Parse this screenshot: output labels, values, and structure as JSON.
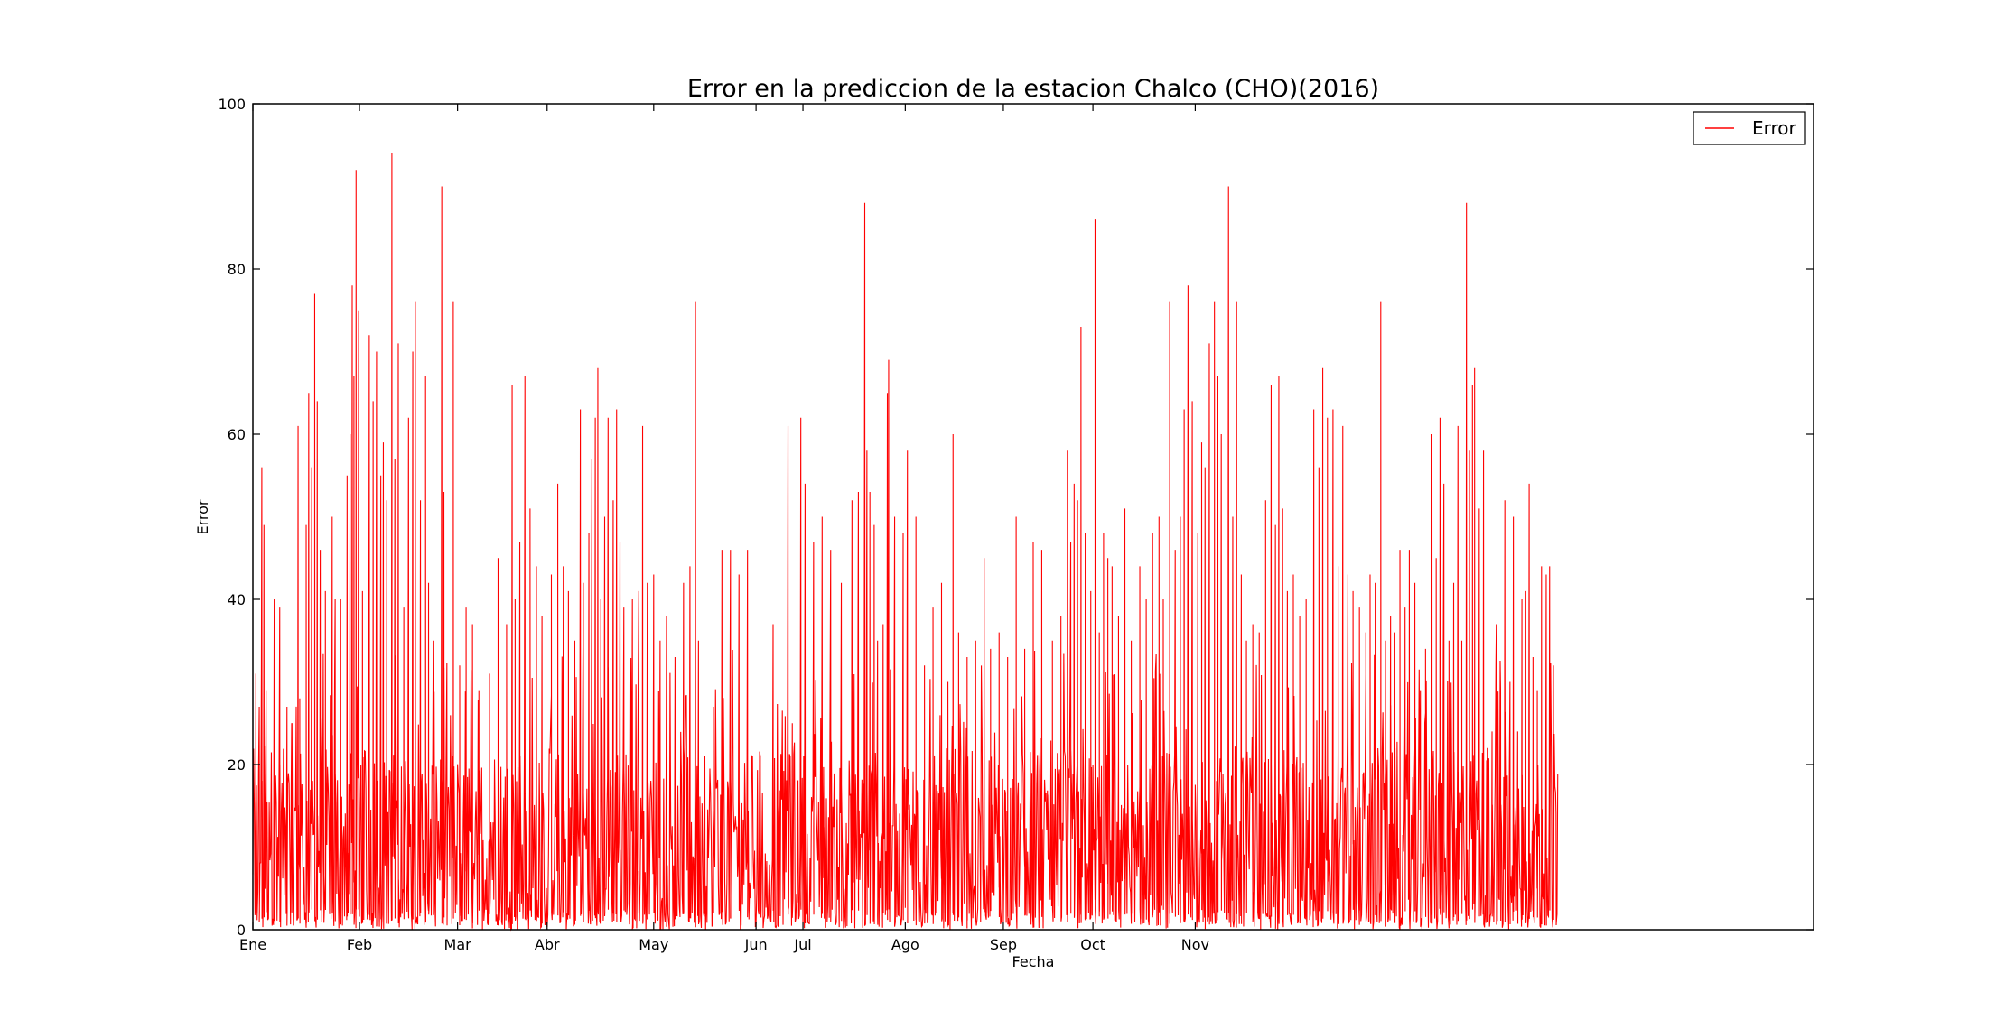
{
  "chart_data": {
    "type": "line",
    "title": "Error en la prediccion de la estacion Chalco (CHO)(2016)",
    "xlabel": "Fecha",
    "ylabel": "Error",
    "ylim": [
      0,
      100
    ],
    "yticks": [
      0,
      20,
      40,
      60,
      80,
      100
    ],
    "xlim": [
      0,
      366
    ],
    "x_tick_positions": [
      0,
      25,
      48,
      69,
      94,
      118,
      129,
      153,
      176,
      197,
      221
    ],
    "x_tick_labels": [
      "Ene",
      "Feb",
      "Mar",
      "Abr",
      "May",
      "Jun",
      "Jul",
      "Ago",
      "Sep",
      "Oct",
      "Nov"
    ],
    "x_data_end": 306,
    "grid": false,
    "legend_position": "top-right",
    "series": [
      {
        "name": "Error",
        "color": "#ff0000",
        "points_per_day": 6,
        "baseline_mean": 8,
        "peaks": [
          [
            0.7,
            31
          ],
          [
            1.5,
            27
          ],
          [
            2.1,
            56
          ],
          [
            2.6,
            49
          ],
          [
            3.1,
            29
          ],
          [
            5.0,
            40
          ],
          [
            6.3,
            39
          ],
          [
            8.0,
            27
          ],
          [
            9.1,
            25
          ],
          [
            10.6,
            61
          ],
          [
            11.0,
            28
          ],
          [
            12.5,
            49
          ],
          [
            13.1,
            65
          ],
          [
            13.8,
            56
          ],
          [
            14.5,
            77
          ],
          [
            15.1,
            64
          ],
          [
            15.8,
            46
          ],
          [
            17.0,
            41
          ],
          [
            18.6,
            50
          ],
          [
            19.3,
            40
          ],
          [
            20.6,
            40
          ],
          [
            22.1,
            55
          ],
          [
            22.8,
            60
          ],
          [
            23.3,
            78
          ],
          [
            23.7,
            67
          ],
          [
            24.2,
            92
          ],
          [
            24.8,
            75
          ],
          [
            25.7,
            41
          ],
          [
            27.3,
            72
          ],
          [
            28.2,
            64
          ],
          [
            29.0,
            70
          ],
          [
            30.0,
            55
          ],
          [
            30.6,
            59
          ],
          [
            31.4,
            52
          ],
          [
            32.6,
            94
          ],
          [
            33.3,
            57
          ],
          [
            34.1,
            71
          ],
          [
            35.4,
            39
          ],
          [
            36.5,
            62
          ],
          [
            37.5,
            70
          ],
          [
            38.1,
            76
          ],
          [
            39.3,
            52
          ],
          [
            40.5,
            67
          ],
          [
            41.2,
            42
          ],
          [
            42.3,
            35
          ],
          [
            44.3,
            90
          ],
          [
            44.8,
            53
          ],
          [
            45.5,
            30
          ],
          [
            47.0,
            76
          ],
          [
            48.5,
            32
          ],
          [
            50.0,
            39
          ],
          [
            51.5,
            37
          ],
          [
            53.0,
            29
          ],
          [
            55.5,
            31
          ],
          [
            57.5,
            45
          ],
          [
            59.5,
            37
          ],
          [
            60.8,
            66
          ],
          [
            61.5,
            40
          ],
          [
            62.6,
            47
          ],
          [
            63.8,
            67
          ],
          [
            65.0,
            51
          ],
          [
            66.5,
            44
          ],
          [
            67.8,
            38
          ],
          [
            70.0,
            43
          ],
          [
            71.5,
            54
          ],
          [
            72.8,
            44
          ],
          [
            74.0,
            41
          ],
          [
            75.5,
            35
          ],
          [
            76.8,
            63
          ],
          [
            77.5,
            42
          ],
          [
            78.8,
            48
          ],
          [
            79.5,
            57
          ],
          [
            80.3,
            62
          ],
          [
            80.9,
            68
          ],
          [
            81.6,
            40
          ],
          [
            82.5,
            50
          ],
          [
            83.3,
            62
          ],
          [
            84.5,
            52
          ],
          [
            85.3,
            63
          ],
          [
            86.1,
            47
          ],
          [
            87.0,
            39
          ],
          [
            89.0,
            40
          ],
          [
            90.5,
            41
          ],
          [
            91.4,
            61
          ],
          [
            92.5,
            42
          ],
          [
            94.0,
            43
          ],
          [
            95.5,
            35
          ],
          [
            97.0,
            38
          ],
          [
            99.0,
            33
          ],
          [
            101.0,
            42
          ],
          [
            102.5,
            44
          ],
          [
            103.8,
            76
          ],
          [
            104.5,
            35
          ],
          [
            106.0,
            21
          ],
          [
            108.0,
            27
          ],
          [
            110.0,
            46
          ],
          [
            112.0,
            46
          ],
          [
            114.0,
            43
          ],
          [
            116.0,
            46
          ],
          [
            119.0,
            21
          ],
          [
            122.0,
            37
          ],
          [
            125.5,
            61
          ],
          [
            126.5,
            25
          ],
          [
            128.5,
            62
          ],
          [
            129.5,
            54
          ],
          [
            131.5,
            47
          ],
          [
            133.5,
            50
          ],
          [
            135.5,
            46
          ],
          [
            138.0,
            42
          ],
          [
            140.5,
            52
          ],
          [
            142.0,
            53
          ],
          [
            143.5,
            88
          ],
          [
            144.0,
            58
          ],
          [
            144.7,
            53
          ],
          [
            145.7,
            49
          ],
          [
            146.5,
            35
          ],
          [
            147.8,
            37
          ],
          [
            148.8,
            65
          ],
          [
            149.1,
            69
          ],
          [
            150.5,
            50
          ],
          [
            152.5,
            48
          ],
          [
            153.5,
            58
          ],
          [
            155.5,
            50
          ],
          [
            157.5,
            32
          ],
          [
            159.5,
            39
          ],
          [
            161.5,
            42
          ],
          [
            163.0,
            30
          ],
          [
            164.2,
            60
          ],
          [
            165.5,
            36
          ],
          [
            167.5,
            33
          ],
          [
            169.5,
            35
          ],
          [
            171.5,
            45
          ],
          [
            173.0,
            34
          ],
          [
            175.0,
            36
          ],
          [
            177.0,
            33
          ],
          [
            179.0,
            50
          ],
          [
            181.0,
            34
          ],
          [
            183.0,
            47
          ],
          [
            185.0,
            46
          ],
          [
            187.5,
            35
          ],
          [
            189.5,
            38
          ],
          [
            191.0,
            58
          ],
          [
            191.8,
            47
          ],
          [
            192.6,
            54
          ],
          [
            193.4,
            52
          ],
          [
            194.2,
            73
          ],
          [
            195.2,
            48
          ],
          [
            196.5,
            41
          ],
          [
            197.5,
            86
          ],
          [
            198.5,
            36
          ],
          [
            199.5,
            48
          ],
          [
            200.5,
            45
          ],
          [
            201.5,
            44
          ],
          [
            203.0,
            38
          ],
          [
            204.5,
            51
          ],
          [
            206.0,
            35
          ],
          [
            208.0,
            44
          ],
          [
            209.5,
            40
          ],
          [
            211.0,
            48
          ],
          [
            212.5,
            50
          ],
          [
            213.5,
            40
          ],
          [
            215.0,
            76
          ],
          [
            216.3,
            46
          ],
          [
            217.5,
            50
          ],
          [
            218.4,
            63
          ],
          [
            219.3,
            78
          ],
          [
            220.3,
            64
          ],
          [
            221.6,
            48
          ],
          [
            222.5,
            59
          ],
          [
            223.3,
            56
          ],
          [
            224.3,
            71
          ],
          [
            225.5,
            76
          ],
          [
            226.3,
            67
          ],
          [
            227.1,
            60
          ],
          [
            228.8,
            90
          ],
          [
            229.8,
            50
          ],
          [
            230.7,
            76
          ],
          [
            231.8,
            43
          ],
          [
            233.0,
            35
          ],
          [
            234.5,
            37
          ],
          [
            236.0,
            36
          ],
          [
            237.5,
            52
          ],
          [
            238.8,
            66
          ],
          [
            239.8,
            49
          ],
          [
            240.6,
            67
          ],
          [
            241.5,
            51
          ],
          [
            242.6,
            41
          ],
          [
            244.0,
            43
          ],
          [
            245.5,
            38
          ],
          [
            247.0,
            40
          ],
          [
            248.8,
            63
          ],
          [
            250.0,
            56
          ],
          [
            250.9,
            68
          ],
          [
            252.0,
            62
          ],
          [
            253.3,
            63
          ],
          [
            254.5,
            44
          ],
          [
            255.6,
            61
          ],
          [
            256.8,
            43
          ],
          [
            258.0,
            41
          ],
          [
            259.5,
            39
          ],
          [
            261.0,
            36
          ],
          [
            262.0,
            43
          ],
          [
            263.2,
            42
          ],
          [
            264.5,
            76
          ],
          [
            265.6,
            35
          ],
          [
            266.8,
            38
          ],
          [
            267.8,
            36
          ],
          [
            269.0,
            46
          ],
          [
            270.2,
            39
          ],
          [
            271.2,
            46
          ],
          [
            272.5,
            42
          ],
          [
            273.8,
            29
          ],
          [
            275.0,
            34
          ],
          [
            276.5,
            60
          ],
          [
            277.5,
            45
          ],
          [
            278.4,
            62
          ],
          [
            279.3,
            54
          ],
          [
            280.5,
            35
          ],
          [
            281.6,
            42
          ],
          [
            282.6,
            61
          ],
          [
            283.5,
            35
          ],
          [
            284.6,
            88
          ],
          [
            285.3,
            58
          ],
          [
            286.0,
            66
          ],
          [
            286.5,
            68
          ],
          [
            287.6,
            51
          ],
          [
            288.6,
            58
          ],
          [
            289.6,
            22
          ],
          [
            290.6,
            24
          ],
          [
            291.6,
            37
          ],
          [
            292.6,
            29
          ],
          [
            293.6,
            52
          ],
          [
            294.8,
            30
          ],
          [
            295.6,
            50
          ],
          [
            296.6,
            24
          ],
          [
            297.6,
            40
          ],
          [
            298.5,
            41
          ],
          [
            299.3,
            54
          ],
          [
            300.2,
            33
          ],
          [
            301.2,
            29
          ],
          [
            302.2,
            44
          ],
          [
            303.3,
            43
          ],
          [
            304.1,
            44
          ],
          [
            305.0,
            32
          ],
          [
            305.6,
            14
          ]
        ]
      }
    ]
  }
}
